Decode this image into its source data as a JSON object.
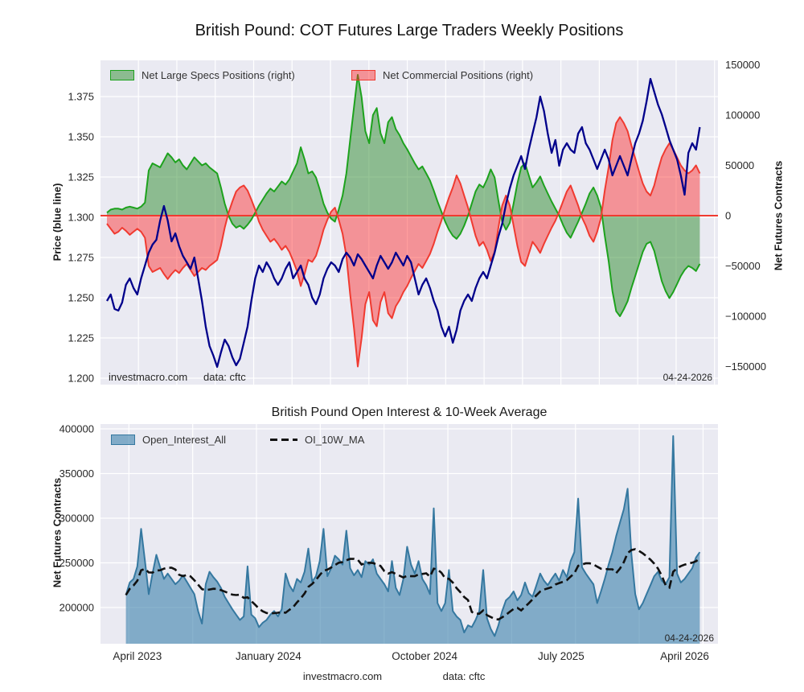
{
  "page": {
    "title": "British Pound: COT Futures Large Traders Weekly Positions"
  },
  "top_chart": {
    "legend": [
      {
        "label": "Net Large Specs Positions (right)"
      },
      {
        "label": "Net Commercial Positions (right)"
      }
    ],
    "left_axis_label": "Price (blue line)",
    "right_axis_label": "Net Futures Contracts",
    "annotations": {
      "source": "investmacro.com",
      "data_source": "data: cftc",
      "date": "04-24-2026"
    }
  },
  "bottom_chart": {
    "title": "British Pound Open Interest & 10-Week Average",
    "legend": [
      {
        "label": "Open_Interest_All"
      },
      {
        "label": "OI_10W_MA"
      }
    ],
    "y_axis_label": "Net Futures Contracts",
    "annotations": {
      "date": "04-24-2026"
    }
  },
  "footer": {
    "source": "investmacro.com",
    "data_source": "data: cftc"
  },
  "colors": {
    "plot_bg": "#EAEAF2",
    "grid": "#FFFFFF",
    "price_line": "#00008B",
    "specs_fill": "rgba(46,139,46,0.5)",
    "specs_edge": "#1da21d",
    "comms_fill": "rgba(255,40,40,0.45)",
    "comms_edge": "#f03a30",
    "zero_line": "#f03a30",
    "oi_fill": "rgba(58,128,172,0.6)",
    "oi_edge": "#3578a0",
    "ma_line": "#111111"
  },
  "chart_data": [
    {
      "type": "line",
      "title": "British Pound: COT Futures Large Traders Weekly Positions",
      "x_unit": "week_index",
      "n_weeks": 157,
      "x_tick_labels": [
        "April 2023",
        "January 2024",
        "October 2024",
        "July 2025",
        "April 2026"
      ],
      "x_tick_weeks": [
        8,
        42.5,
        83.6,
        119.5,
        152
      ],
      "left_ylabel": "Price (blue line)",
      "left_ticks": [
        1.375,
        1.35,
        1.325,
        1.3,
        1.275,
        1.25,
        1.225,
        1.2
      ],
      "left_ylim": [
        1.196,
        1.3985
      ],
      "right_ylabel": "Net Futures Contracts",
      "right_ticks": [
        150000,
        100000,
        50000,
        0,
        -50000,
        -100000,
        -150000
      ],
      "right_ylim": [
        -167000,
        156000
      ],
      "grid": true,
      "legend_position": "upper left",
      "series": [
        {
          "name": "Price",
          "type": "line",
          "axis": "left",
          "color": "#00008B",
          "values": [
            1.248,
            1.252,
            1.243,
            1.242,
            1.247,
            1.258,
            1.262,
            1.256,
            1.252,
            1.262,
            1.27,
            1.278,
            1.283,
            1.286,
            1.298,
            1.307,
            1.298,
            1.285,
            1.29,
            1.282,
            1.276,
            1.272,
            1.268,
            1.275,
            1.262,
            1.248,
            1.232,
            1.22,
            1.214,
            1.207,
            1.216,
            1.224,
            1.22,
            1.213,
            1.208,
            1.212,
            1.222,
            1.232,
            1.248,
            1.262,
            1.27,
            1.266,
            1.272,
            1.268,
            1.262,
            1.258,
            1.262,
            1.268,
            1.272,
            1.262,
            1.266,
            1.27,
            1.262,
            1.258,
            1.25,
            1.246,
            1.252,
            1.262,
            1.268,
            1.272,
            1.27,
            1.266,
            1.274,
            1.278,
            1.275,
            1.27,
            1.277,
            1.274,
            1.27,
            1.266,
            1.262,
            1.27,
            1.276,
            1.272,
            1.268,
            1.272,
            1.278,
            1.274,
            1.27,
            1.276,
            1.272,
            1.262,
            1.252,
            1.258,
            1.262,
            1.256,
            1.248,
            1.242,
            1.232,
            1.226,
            1.232,
            1.222,
            1.23,
            1.242,
            1.248,
            1.252,
            1.248,
            1.256,
            1.262,
            1.266,
            1.262,
            1.27,
            1.278,
            1.288,
            1.296,
            1.308,
            1.318,
            1.326,
            1.332,
            1.338,
            1.33,
            1.342,
            1.352,
            1.362,
            1.375,
            1.366,
            1.352,
            1.34,
            1.348,
            1.332,
            1.342,
            1.346,
            1.342,
            1.34,
            1.352,
            1.356,
            1.346,
            1.342,
            1.336,
            1.33,
            1.336,
            1.342,
            1.336,
            1.326,
            1.332,
            1.338,
            1.332,
            1.326,
            1.336,
            1.346,
            1.352,
            1.36,
            1.372,
            1.386,
            1.378,
            1.37,
            1.364,
            1.356,
            1.348,
            1.342,
            1.336,
            1.326,
            1.314,
            1.34,
            1.346,
            1.342,
            1.356
          ]
        },
        {
          "name": "Net Large Specs Positions (right)",
          "type": "area",
          "axis": "right",
          "color": "green",
          "values": [
            3000,
            6000,
            7000,
            7000,
            6000,
            8000,
            9000,
            8000,
            7000,
            9000,
            13000,
            45000,
            52000,
            50000,
            48000,
            55000,
            62000,
            58000,
            53000,
            56000,
            50000,
            46000,
            52000,
            58000,
            54000,
            50000,
            52000,
            48000,
            45000,
            42000,
            28000,
            12000,
            0,
            -8000,
            -12000,
            -10000,
            -13000,
            -9000,
            -4000,
            3000,
            10000,
            16000,
            22000,
            27000,
            24000,
            29000,
            34000,
            31000,
            36000,
            44000,
            52000,
            68000,
            56000,
            42000,
            44000,
            38000,
            26000,
            12000,
            3000,
            -3000,
            -6000,
            6000,
            20000,
            42000,
            75000,
            108000,
            140000,
            118000,
            84000,
            72000,
            100000,
            107000,
            82000,
            72000,
            93000,
            98000,
            86000,
            80000,
            72000,
            66000,
            59000,
            52000,
            46000,
            49000,
            42000,
            35000,
            25000,
            14000,
            4000,
            -6000,
            -14000,
            -20000,
            -23000,
            -18000,
            -10000,
            0,
            12000,
            24000,
            31000,
            28000,
            36000,
            46000,
            38000,
            15000,
            -6000,
            -14000,
            -7000,
            12000,
            32000,
            48000,
            52000,
            40000,
            28000,
            33000,
            39000,
            30000,
            22000,
            14000,
            7000,
            0,
            -9000,
            -17000,
            -22000,
            -14000,
            -6000,
            3000,
            12000,
            22000,
            28000,
            20000,
            8000,
            -20000,
            -45000,
            -75000,
            -95000,
            -100000,
            -93000,
            -85000,
            -72000,
            -60000,
            -48000,
            -36000,
            -28000,
            -26000,
            -35000,
            -50000,
            -65000,
            -75000,
            -82000,
            -76000,
            -68000,
            -60000,
            -54000,
            -50000,
            -52000,
            -55000,
            -48000
          ]
        },
        {
          "name": "Net Commercial Positions (right)",
          "type": "area",
          "axis": "right",
          "color": "red",
          "values": [
            -8000,
            -13000,
            -18000,
            -16000,
            -12000,
            -15000,
            -19000,
            -16000,
            -13000,
            -16000,
            -22000,
            -50000,
            -56000,
            -54000,
            -52000,
            -58000,
            -63000,
            -58000,
            -54000,
            -57000,
            -52000,
            -48000,
            -54000,
            -60000,
            -56000,
            -52000,
            -54000,
            -50000,
            -47000,
            -44000,
            -30000,
            -12000,
            3000,
            14000,
            24000,
            28000,
            30000,
            25000,
            16000,
            6000,
            -6000,
            -14000,
            -20000,
            -26000,
            -23000,
            -28000,
            -34000,
            -30000,
            -36000,
            -45000,
            -55000,
            -70000,
            -58000,
            -44000,
            -46000,
            -40000,
            -28000,
            -14000,
            -4000,
            4000,
            8000,
            -4000,
            -18000,
            -40000,
            -78000,
            -112000,
            -150000,
            -122000,
            -88000,
            -76000,
            -104000,
            -110000,
            -86000,
            -76000,
            -97000,
            -102000,
            -90000,
            -84000,
            -76000,
            -70000,
            -62000,
            -55000,
            -48000,
            -52000,
            -45000,
            -38000,
            -28000,
            -16000,
            -5000,
            7000,
            18000,
            28000,
            40000,
            32000,
            20000,
            8000,
            -6000,
            -20000,
            -30000,
            -26000,
            -34000,
            -45000,
            -36000,
            -12000,
            10000,
            20000,
            10000,
            -10000,
            -30000,
            -46000,
            -50000,
            -38000,
            -26000,
            -31000,
            -37000,
            -28000,
            -20000,
            -12000,
            -5000,
            4000,
            14000,
            24000,
            30000,
            20000,
            10000,
            -2000,
            -10000,
            -20000,
            -26000,
            -16000,
            -2000,
            25000,
            48000,
            75000,
            92000,
            98000,
            92000,
            84000,
            70000,
            57000,
            44000,
            32000,
            24000,
            20000,
            30000,
            45000,
            58000,
            66000,
            72000,
            66000,
            58000,
            50000,
            45000,
            42000,
            45000,
            50000,
            42000
          ]
        }
      ]
    },
    {
      "type": "area",
      "title": "British Pound Open Interest & 10-Week Average",
      "x_unit": "week_index",
      "start_week": 5,
      "x_tick_labels": [
        "April 2023",
        "January 2024",
        "October 2024",
        "July 2025",
        "April 2026"
      ],
      "x_tick_weeks": [
        8,
        42.5,
        83.6,
        119.5,
        152
      ],
      "ylabel": "Net Futures Contracts",
      "yticks": [
        400000,
        350000,
        300000,
        250000,
        200000
      ],
      "ylim": [
        155000,
        405000
      ],
      "grid": true,
      "series": [
        {
          "name": "Open_Interest_All",
          "type": "area",
          "color": "steelblue",
          "values": [
            214000,
            228000,
            232000,
            246000,
            288000,
            252000,
            215000,
            238000,
            259000,
            245000,
            232000,
            238000,
            232000,
            226000,
            230000,
            236000,
            229000,
            222000,
            215000,
            196000,
            182000,
            226000,
            240000,
            234000,
            229000,
            222000,
            212000,
            205000,
            198000,
            192000,
            186000,
            190000,
            246000,
            192000,
            188000,
            178000,
            183000,
            186000,
            192000,
            196000,
            190000,
            198000,
            238000,
            225000,
            218000,
            232000,
            228000,
            240000,
            266000,
            229000,
            235000,
            252000,
            288000,
            235000,
            244000,
            258000,
            254000,
            248000,
            286000,
            244000,
            236000,
            242000,
            234000,
            252000,
            248000,
            254000,
            238000,
            232000,
            226000,
            218000,
            252000,
            222000,
            214000,
            232000,
            268000,
            248000,
            238000,
            252000,
            232000,
            225000,
            215000,
            311000,
            205000,
            196000,
            205000,
            242000,
            196000,
            190000,
            186000,
            172000,
            180000,
            178000,
            186000,
            196000,
            242000,
            188000,
            176000,
            168000,
            180000,
            196000,
            208000,
            212000,
            218000,
            208000,
            214000,
            228000,
            216000,
            212000,
            225000,
            238000,
            230000,
            225000,
            232000,
            238000,
            230000,
            242000,
            234000,
            252000,
            262000,
            322000,
            245000,
            238000,
            232000,
            226000,
            205000,
            218000,
            232000,
            248000,
            262000,
            280000,
            295000,
            310000,
            333000,
            260000,
            215000,
            198000,
            205000,
            215000,
            225000,
            235000,
            240000,
            230000,
            226000,
            234000,
            392000,
            238000,
            228000,
            232000,
            238000,
            244000,
            256000,
            262000
          ]
        },
        {
          "name": "OI_10W_MA",
          "type": "line",
          "style": "dashed",
          "color": "black",
          "derivation": "trailing 10-week mean of Open_Interest_All"
        }
      ]
    }
  ]
}
